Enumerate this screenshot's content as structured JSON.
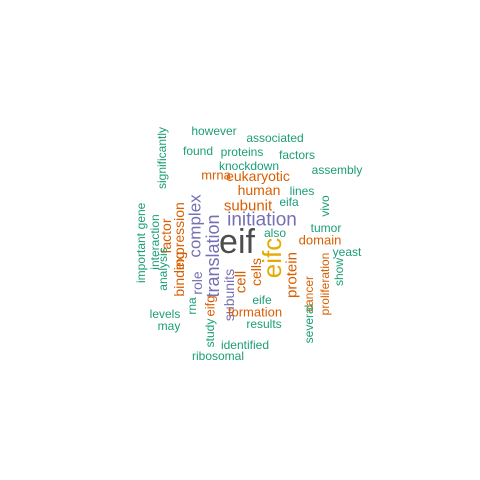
{
  "word_cloud": {
    "palette": {
      "teal": "#1b9e77",
      "orange": "#d95f02",
      "purple": "#7570b3",
      "gold": "#e6ab02",
      "dark": "#4d4d4d"
    },
    "words": [
      {
        "text": "eif",
        "color": "#4d4d4d",
        "rotated": false
      },
      {
        "text": "eifc",
        "color": "#e6ab02",
        "rotated": true
      },
      {
        "text": "initiation",
        "color": "#7570b3",
        "rotated": false
      },
      {
        "text": "translation",
        "color": "#7570b3",
        "rotated": true
      },
      {
        "text": "complex",
        "color": "#7570b3",
        "rotated": true
      },
      {
        "text": "expression",
        "color": "#d95f02",
        "rotated": true
      },
      {
        "text": "factor",
        "color": "#d95f02",
        "rotated": true
      },
      {
        "text": "subunit",
        "color": "#d95f02",
        "rotated": false
      },
      {
        "text": "human",
        "color": "#d95f02",
        "rotated": false
      },
      {
        "text": "eukaryotic",
        "color": "#d95f02",
        "rotated": false
      },
      {
        "text": "cell",
        "color": "#d95f02",
        "rotated": true
      },
      {
        "text": "cells",
        "color": "#d95f02",
        "rotated": true
      },
      {
        "text": "protein",
        "color": "#d95f02",
        "rotated": true
      },
      {
        "text": "subunits",
        "color": "#7570b3",
        "rotated": true
      },
      {
        "text": "binding",
        "color": "#d95f02",
        "rotated": true
      },
      {
        "text": "role",
        "color": "#7570b3",
        "rotated": true
      },
      {
        "text": "domain",
        "color": "#d95f02",
        "rotated": false
      },
      {
        "text": "mrna",
        "color": "#d95f02",
        "rotated": false
      },
      {
        "text": "formation",
        "color": "#d95f02",
        "rotated": false
      },
      {
        "text": "eifg",
        "color": "#d95f02",
        "rotated": true
      },
      {
        "text": "cancer",
        "color": "#d95f02",
        "rotated": true
      },
      {
        "text": "proliferation",
        "color": "#d95f02",
        "rotated": true
      },
      {
        "text": "however",
        "color": "#1b9e77",
        "rotated": false
      },
      {
        "text": "associated",
        "color": "#1b9e77",
        "rotated": false
      },
      {
        "text": "found",
        "color": "#1b9e77",
        "rotated": false
      },
      {
        "text": "proteins",
        "color": "#1b9e77",
        "rotated": false
      },
      {
        "text": "factors",
        "color": "#1b9e77",
        "rotated": false
      },
      {
        "text": "knockdown",
        "color": "#1b9e77",
        "rotated": false
      },
      {
        "text": "assembly",
        "color": "#1b9e77",
        "rotated": false
      },
      {
        "text": "significantly",
        "color": "#1b9e77",
        "rotated": true
      },
      {
        "text": "lines",
        "color": "#1b9e77",
        "rotated": false
      },
      {
        "text": "eifa",
        "color": "#1b9e77",
        "rotated": false
      },
      {
        "text": "vivo",
        "color": "#1b9e77",
        "rotated": true
      },
      {
        "text": "tumor",
        "color": "#1b9e77",
        "rotated": false
      },
      {
        "text": "also",
        "color": "#1b9e77",
        "rotated": false
      },
      {
        "text": "yeast",
        "color": "#1b9e77",
        "rotated": false
      },
      {
        "text": "show",
        "color": "#1b9e77",
        "rotated": true
      },
      {
        "text": "gene",
        "color": "#1b9e77",
        "rotated": true
      },
      {
        "text": "important",
        "color": "#1b9e77",
        "rotated": true
      },
      {
        "text": "interaction",
        "color": "#1b9e77",
        "rotated": true
      },
      {
        "text": "analysis",
        "color": "#1b9e77",
        "rotated": true
      },
      {
        "text": "levels",
        "color": "#1b9e77",
        "rotated": false
      },
      {
        "text": "may",
        "color": "#1b9e77",
        "rotated": false
      },
      {
        "text": "rna",
        "color": "#1b9e77",
        "rotated": true
      },
      {
        "text": "study",
        "color": "#1b9e77",
        "rotated": true
      },
      {
        "text": "eife",
        "color": "#1b9e77",
        "rotated": false
      },
      {
        "text": "results",
        "color": "#1b9e77",
        "rotated": false
      },
      {
        "text": "several",
        "color": "#1b9e77",
        "rotated": true
      },
      {
        "text": "identified",
        "color": "#1b9e77",
        "rotated": false
      },
      {
        "text": "ribosomal",
        "color": "#1b9e77",
        "rotated": false
      }
    ]
  }
}
